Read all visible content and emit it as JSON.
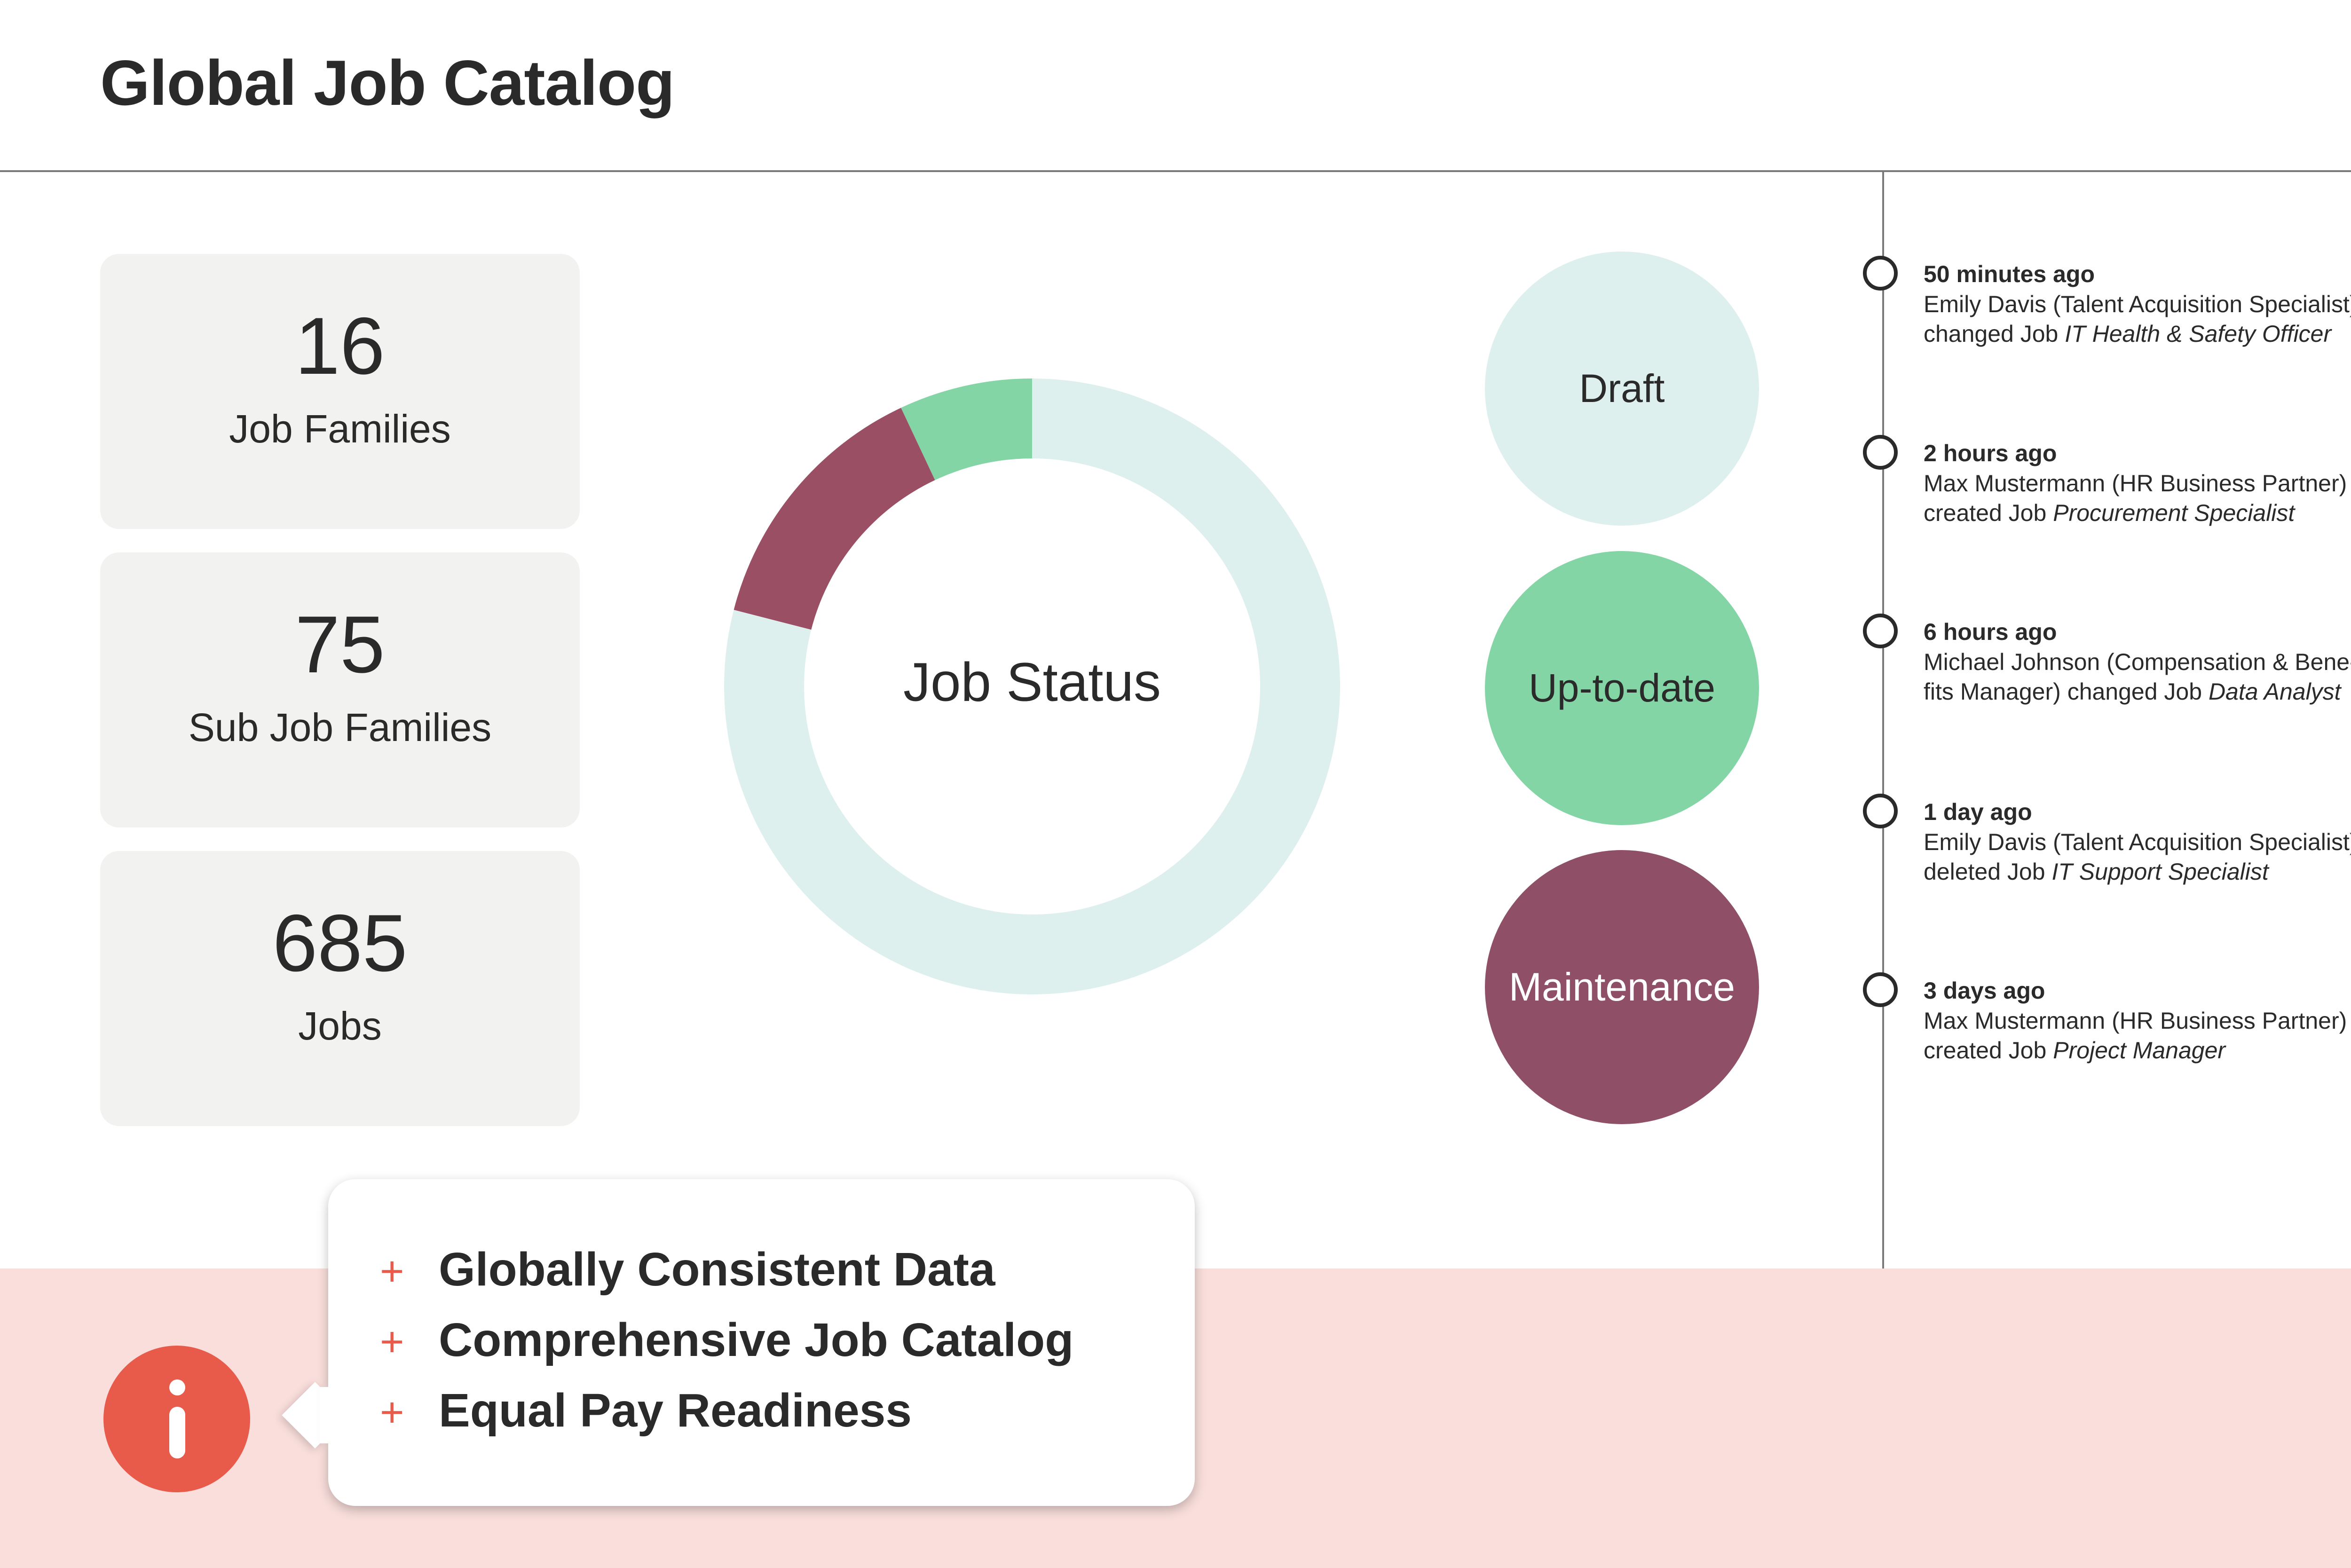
{
  "header": {
    "title": "Global Job Catalog"
  },
  "stats": [
    {
      "value": "16",
      "label": "Job Families"
    },
    {
      "value": "75",
      "label": "Sub Job Families"
    },
    {
      "value": "685",
      "label": "Jobs"
    }
  ],
  "chart_data": {
    "type": "pie",
    "title": "Job Status",
    "categories": [
      "Up-to-date",
      "Maintenance",
      "Draft"
    ],
    "values": [
      7,
      14,
      79
    ],
    "colors": [
      "#84d5a5",
      "#9a4f64",
      "#ddf0ee"
    ]
  },
  "status_legend": [
    {
      "label": "Draft",
      "color": "#ddf0ee",
      "text_color": "#2a2a2a"
    },
    {
      "label": "Up-to-date",
      "color": "#84d5a5",
      "text_color": "#2a2a2a"
    },
    {
      "label": "Maintenance",
      "color": "#8e4f67",
      "text_color": "#ffffff"
    }
  ],
  "activity": [
    {
      "time": "50 minutes ago",
      "actor": "Emily Davis (Talent Acquisition Specialist)",
      "action": "changed Job",
      "job": "IT Health & Safety Officer"
    },
    {
      "time": "2 hours ago",
      "actor": "Max Mustermann (HR Business Partner)",
      "action": "created Job",
      "job": "Procurement Specialist"
    },
    {
      "time": "6 hours ago",
      "actor": "Michael Johnson (Compensation & Bene-fits Manager)",
      "action": "changed Job",
      "job": "Data Analyst"
    },
    {
      "time": "1 day ago",
      "actor": "Emily Davis (Talent Acquisition Specialist)",
      "action": "deleted Job",
      "job": "IT Support Specialist"
    },
    {
      "time": "3 days ago",
      "actor": "Max Mustermann (HR Business Partner)",
      "action": "created Job",
      "job": "Project Manager"
    }
  ],
  "info": {
    "icon": "info-icon",
    "plus_symbol": "+",
    "benefits": [
      "Globally Consistent Data",
      "Comprehensive Job Catalog",
      "Equal Pay Readiness"
    ]
  },
  "colors": {
    "accent": "#e85a4a",
    "band": "#f9dedb",
    "card": "#f2f2f0"
  }
}
